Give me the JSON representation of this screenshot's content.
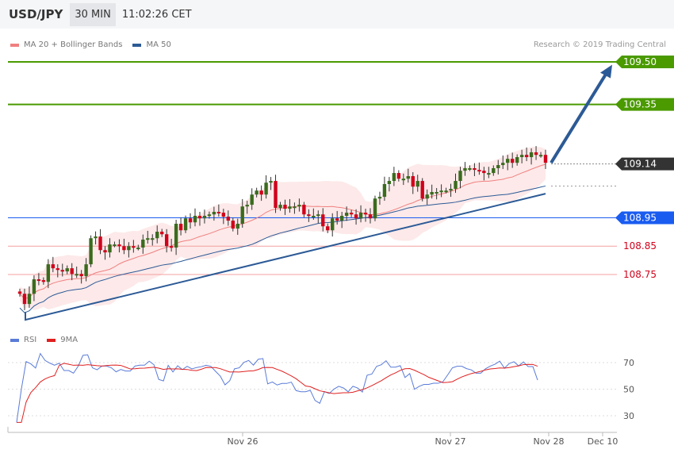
{
  "header": {
    "symbol": "USD/JPY",
    "timeframe": "30 MIN",
    "time": "11:02:26 CET"
  },
  "legend": {
    "ma20": "MA 20 + Bollinger Bands",
    "ma50": "MA 50",
    "rsi": "RSI",
    "rsi_ma": "9MA",
    "credit": "Research © 2019 Trading Central"
  },
  "colors": {
    "up": "#3a6b1e",
    "down": "#d0021b",
    "ma20": "#f08080",
    "band": "#fde3e3",
    "ma50": "#2c5a96",
    "green": "#4a9a00",
    "blue": "#1a5cf0",
    "dark": "#333333",
    "rsi": "#5a7bd8",
    "rsi_ma": "#e02020"
  },
  "chart_data": {
    "type": "candlestick",
    "price_range": [
      108.58,
      109.58
    ],
    "closes": [
      108.682,
      108.646,
      108.682,
      108.733,
      108.73,
      108.724,
      108.786,
      108.772,
      108.766,
      108.761,
      108.772,
      108.752,
      108.752,
      108.744,
      108.786,
      108.878,
      108.884,
      108.836,
      108.828,
      108.856,
      108.856,
      108.85,
      108.836,
      108.85,
      108.845,
      108.845,
      108.873,
      108.878,
      108.878,
      108.901,
      108.892,
      108.85,
      108.845,
      108.929,
      108.906,
      108.948,
      108.934,
      108.957,
      108.948,
      108.957,
      108.962,
      108.971,
      108.968,
      108.954,
      108.94,
      108.912,
      108.929,
      108.99,
      108.996,
      109.032,
      109.046,
      109.032,
      109.074,
      109.08,
      108.985,
      108.996,
      108.982,
      108.99,
      108.99,
      108.996,
      108.962,
      108.957,
      108.957,
      108.962,
      108.92,
      108.906,
      108.948,
      108.94,
      108.957,
      108.968,
      108.962,
      108.948,
      108.968,
      108.962,
      108.948,
      109.018,
      109.024,
      109.069,
      109.08,
      109.108,
      109.088,
      109.088,
      109.097,
      109.06,
      109.08,
      109.018,
      109.032,
      109.041,
      109.041,
      109.046,
      109.046,
      109.052,
      109.08,
      109.116,
      109.125,
      109.125,
      109.119,
      109.116,
      109.108,
      109.108,
      109.125,
      109.136,
      109.144,
      109.158,
      109.144,
      109.164,
      109.172,
      109.164,
      109.181,
      109.172,
      109.172,
      109.144
    ],
    "levels": [
      {
        "price": 109.5,
        "label": "109.50",
        "kind": "resistance"
      },
      {
        "price": 109.35,
        "label": "109.35",
        "kind": "resistance"
      },
      {
        "price": 109.14,
        "label": "109.14",
        "kind": "last"
      },
      {
        "price": 108.95,
        "label": "108.95",
        "kind": "pivot"
      },
      {
        "price": 108.85,
        "label": "108.85",
        "kind": "support"
      },
      {
        "price": 108.75,
        "label": "108.75",
        "kind": "support"
      }
    ],
    "trendline": [
      108.59,
      109.035
    ],
    "target_arrow": [
      109.144,
      109.49
    ],
    "rsi": {
      "ticks": [
        30,
        50,
        70
      ],
      "range": [
        20,
        80
      ]
    },
    "x_ticks": [
      "Nov 26",
      "Nov 27",
      "Nov 28",
      "Dec 10"
    ]
  }
}
